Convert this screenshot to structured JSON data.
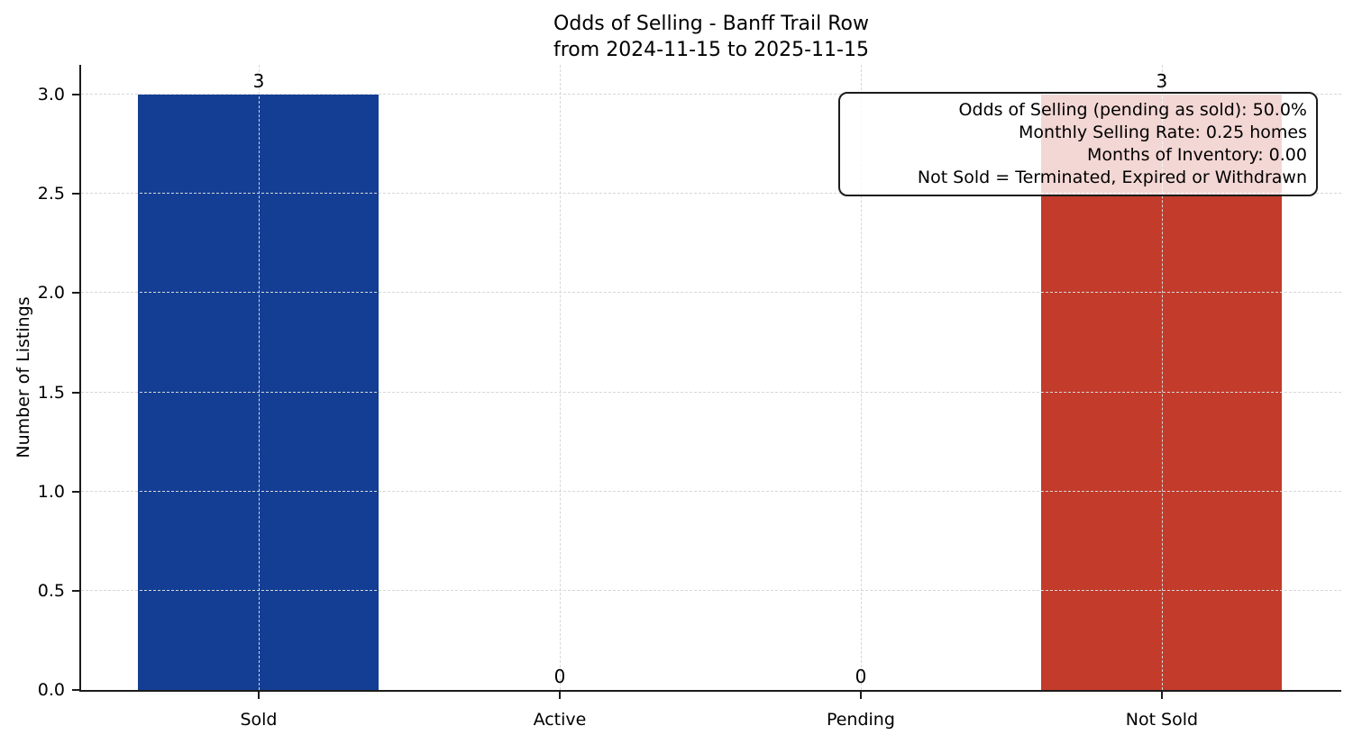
{
  "chart_data": {
    "type": "bar",
    "title": "Odds of Selling - Banff Trail Row",
    "subtitle": "from 2024-11-15 to 2025-11-15",
    "ylabel": "Number of Listings",
    "xlabel": "",
    "categories": [
      "Sold",
      "Active",
      "Pending",
      "Not Sold"
    ],
    "values": [
      3,
      0,
      0,
      3
    ],
    "value_labels": [
      "3",
      "0",
      "0",
      "3"
    ],
    "bar_colors": [
      "#133e94",
      null,
      null,
      "#c23b2b"
    ],
    "yticks": [
      0.0,
      0.5,
      1.0,
      1.5,
      2.0,
      2.5,
      3.0
    ],
    "ytick_labels": [
      "0.0",
      "0.5",
      "1.0",
      "1.5",
      "2.0",
      "2.5",
      "3.0"
    ],
    "ylim": [
      0,
      3.15
    ],
    "grid": "dashed, both axes, drawn above bars",
    "legend_position": "none",
    "annotation": {
      "lines": [
        "Odds of Selling (pending as sold): 50.0%",
        "Monthly Selling Rate: 0.25 homes",
        "Months of Inventory: 0.00",
        "Not Sold = Terminated, Expired or Withdrawn"
      ]
    }
  },
  "colors": {
    "sold_bar": "#133e94",
    "not_sold_bar": "#c23b2b",
    "axis": "#1c1c1c",
    "grid": "#d7d7d7",
    "background": "#ffffff"
  }
}
